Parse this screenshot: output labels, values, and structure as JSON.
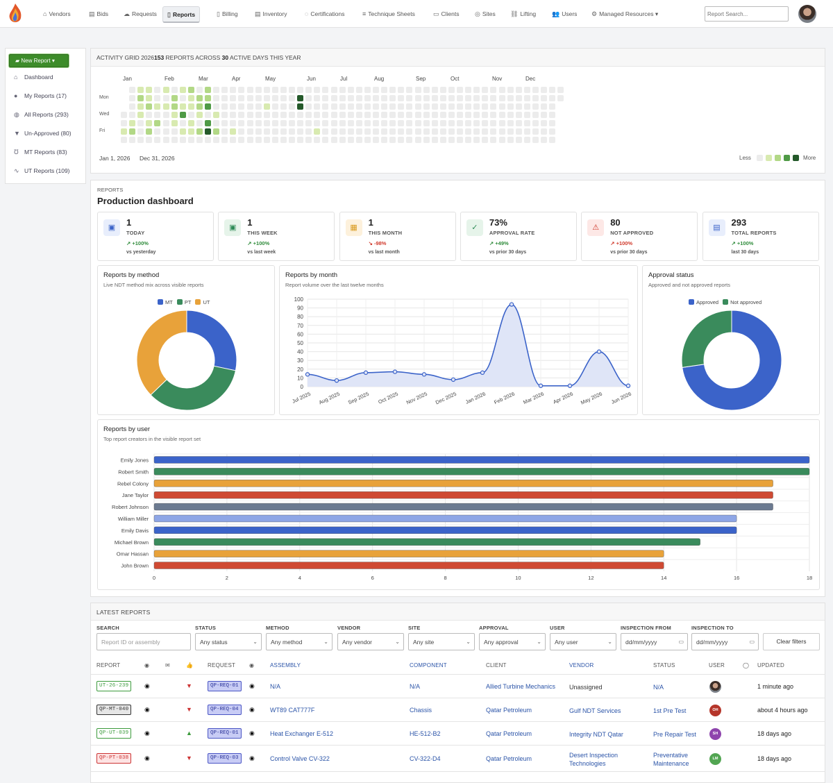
{
  "nav": {
    "items": [
      "Vendors",
      "Bids",
      "Requests",
      "Reports",
      "Billing",
      "Inventory",
      "Certifications",
      "Technique Sheets",
      "Clients",
      "Sites",
      "Lifting",
      "Users",
      "Managed Resources"
    ],
    "active": "Reports",
    "search_placeholder": "Report Search..."
  },
  "sidebar": {
    "new_report": "New Report",
    "items": [
      "Dashboard",
      "My Reports (17)",
      "All Reports (293)",
      "Un-Approved (80)",
      "MT Reports (83)",
      "UT Reports (109)"
    ]
  },
  "activity": {
    "title_prefix": "ACTIVITY GRID 2026",
    "count": "153",
    "mid": " REPORTS ACROSS ",
    "days": "30",
    "suffix": " ACTIVE DAYS THIS YEAR",
    "months": [
      "Jan",
      "Feb",
      "Mar",
      "Apr",
      "May",
      "Jun",
      "Jul",
      "Aug",
      "Sep",
      "Oct",
      "Nov",
      "Dec"
    ],
    "days_of_week": [
      "Mon",
      "Wed",
      "Fri"
    ],
    "start_date": "Jan 1, 2026",
    "end_date": "Dec 31, 2026",
    "legend_less": "Less",
    "legend_more": "More",
    "colors": [
      "#ececec",
      "#d8eab0",
      "#b2d886",
      "#4f9a46",
      "#24592a"
    ]
  },
  "dashboard": {
    "section": "REPORTS",
    "title": "Production dashboard"
  },
  "kpis": [
    {
      "value": "1",
      "label": "TODAY",
      "delta": "+100%",
      "trend": "up",
      "sub": "vs yesterday",
      "icon": "calendar-day-icon",
      "tint": "#e8eefc",
      "color": "#3b63c9"
    },
    {
      "value": "1",
      "label": "THIS WEEK",
      "delta": "+100%",
      "trend": "up",
      "sub": "vs last week",
      "icon": "calendar-week-icon",
      "tint": "#e6f4ea",
      "color": "#2e8b57"
    },
    {
      "value": "1",
      "label": "THIS MONTH",
      "delta": "-98%",
      "trend": "down",
      "sub": "vs last month",
      "icon": "calendar-month-icon",
      "tint": "#fdf1dc",
      "color": "#d99a1e"
    },
    {
      "value": "73%",
      "label": "APPROVAL RATE",
      "delta": "+49%",
      "trend": "up",
      "sub": "vs prior 30 days",
      "icon": "check-circle-icon",
      "tint": "#e6f4ea",
      "color": "#2e8b57"
    },
    {
      "value": "80",
      "label": "NOT APPROVED",
      "delta": "+100%",
      "trend": "bad",
      "sub": "vs prior 30 days",
      "icon": "warning-icon",
      "tint": "#fde8e6",
      "color": "#d0392b"
    },
    {
      "value": "293",
      "label": "TOTAL REPORTS",
      "delta": "+100%",
      "trend": "up",
      "sub": "last 30 days",
      "icon": "document-icon",
      "tint": "#e8eefc",
      "color": "#3b63c9"
    }
  ],
  "cards": {
    "method": {
      "title": "Reports by method",
      "subtitle": "Live NDT method mix across visible reports"
    },
    "month": {
      "title": "Reports by month",
      "subtitle": "Report volume over the last twelve months"
    },
    "approval": {
      "title": "Approval status",
      "subtitle": "Approved and not approved reports"
    },
    "user": {
      "title": "Reports by user",
      "subtitle": "Top report creators in the visible report set"
    }
  },
  "chart_data": [
    {
      "type": "pie",
      "series": [
        {
          "name": "MT",
          "value": 83,
          "color": "#3b63c9"
        },
        {
          "name": "PT",
          "value": 101,
          "color": "#3a8b5c"
        },
        {
          "name": "UT",
          "value": 109,
          "color": "#e8a23a"
        }
      ]
    },
    {
      "type": "area",
      "categories": [
        "Jul 2025",
        "Aug 2025",
        "Sep 2025",
        "Oct 2025",
        "Nov 2025",
        "Dec 2025",
        "Jan 2026",
        "Feb 2026",
        "Mar 2026",
        "Apr 2026",
        "May 2026",
        "Jun 2026"
      ],
      "values": [
        14,
        7,
        16,
        17,
        14,
        8,
        16,
        94,
        1,
        1,
        40,
        1
      ],
      "ylim": [
        0,
        100
      ],
      "yticks": [
        "0",
        "10",
        "20",
        "30",
        "40",
        "50",
        "60",
        "70",
        "80",
        "90",
        "100"
      ]
    },
    {
      "type": "pie",
      "series": [
        {
          "name": "Approved",
          "value": 213,
          "color": "#3b63c9"
        },
        {
          "name": "Not approved",
          "value": 80,
          "color": "#3a8b5c"
        }
      ]
    },
    {
      "type": "bar",
      "categories": [
        "Emily Jones",
        "Robert Smith",
        "Rebel Colony",
        "Jane Taylor",
        "Robert Johnson",
        "William Miller",
        "Emily Davis",
        "Michael Brown",
        "Omar Hassan",
        "John Brown"
      ],
      "values": [
        18,
        18,
        17,
        17,
        17,
        16,
        16,
        15,
        14,
        14
      ],
      "colors": [
        "#3b63c9",
        "#3a8b5c",
        "#e8a23a",
        "#cf4a33",
        "#6b7a90",
        "#8ea6e6",
        "#3b63c9",
        "#3a8b5c",
        "#e8a23a",
        "#cf4a33"
      ],
      "xlim": [
        0,
        18
      ],
      "xticks": [
        "0",
        "2",
        "4",
        "6",
        "8",
        "10",
        "12",
        "14",
        "16",
        "18"
      ]
    }
  ],
  "latest": {
    "title": "LATEST REPORTS",
    "filters": [
      {
        "label": "SEARCH",
        "value": "Report ID or assembly",
        "placeholder": true
      },
      {
        "label": "STATUS",
        "value": "Any status"
      },
      {
        "label": "METHOD",
        "value": "Any method"
      },
      {
        "label": "VENDOR",
        "value": "Any vendor"
      },
      {
        "label": "SITE",
        "value": "Any site"
      },
      {
        "label": "APPROVAL",
        "value": "Any approval"
      },
      {
        "label": "USER",
        "value": "Any user"
      },
      {
        "label": "INSPECTION FROM",
        "value": "dd/mm/yyyy"
      },
      {
        "label": "INSPECTION TO",
        "value": "dd/mm/yyyy"
      }
    ],
    "clear": "Clear filters",
    "headers": {
      "report": "REPORT",
      "request": "REQUEST",
      "assembly": "ASSEMBLY",
      "component": "COMPONENT",
      "client": "CLIENT",
      "vendor": "VENDOR",
      "status": "STATUS",
      "user": "USER",
      "updated": "UPDATED"
    },
    "rows": [
      {
        "id": "UT-26-239",
        "tagc": "#3b9a3b",
        "tagbg": "#fff",
        "approval": "down",
        "request": "QP-REQ-01",
        "assembly": "N/A",
        "component": "N/A",
        "client": "Allied Turbine Mechanics",
        "vendor": "Unassigned",
        "vendor_link": false,
        "status": "N/A",
        "user": "",
        "ubg": "photo",
        "updated": "1 minute ago"
      },
      {
        "id": "QP-MT-040",
        "tagc": "#333",
        "tagbg": "#e6e6e6",
        "approval": "down",
        "request": "QP-REQ-04",
        "assembly": "WT89 CAT777F",
        "component": "Chassis",
        "client": "Qatar Petroleum",
        "vendor": "Gulf NDT Services",
        "vendor_link": true,
        "status": "1st Pre Test",
        "user": "OH",
        "ubg": "#b5352a",
        "updated": "about 4 hours ago"
      },
      {
        "id": "QP-UT-039",
        "tagc": "#3b9a3b",
        "tagbg": "#fff",
        "approval": "up",
        "request": "QP-REQ-01",
        "assembly": "Heat Exchanger E-512",
        "component": "HE-512-B2",
        "client": "Qatar Petroleum",
        "vendor": "Integrity NDT Qatar",
        "vendor_link": true,
        "status": "Pre Repair Test",
        "user": "SH",
        "ubg": "#8e44ad",
        "updated": "18 days ago"
      },
      {
        "id": "QP-PT-038",
        "tagc": "#cc3333",
        "tagbg": "#fde3e3",
        "approval": "down",
        "request": "QP-REQ-03",
        "assembly": "Control Valve CV-322",
        "component": "CV-322-D4",
        "client": "Qatar Petroleum",
        "vendor": "Desert Inspection Technologies",
        "vendor_link": true,
        "status": "Preventative Maintenance",
        "user": "LM",
        "ubg": "#52a552",
        "updated": "18 days ago"
      }
    ]
  }
}
